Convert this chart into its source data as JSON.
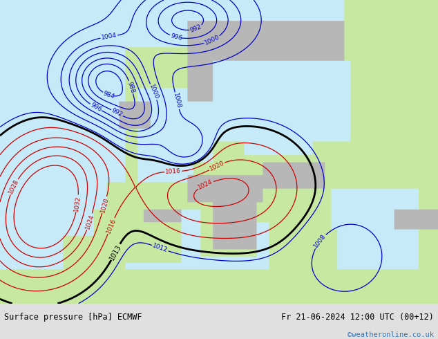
{
  "title_left": "Surface pressure [hPa] ECMWF",
  "title_right": "Fr 21-06-2024 12:00 UTC (00+12)",
  "copyright": "©weatheronline.co.uk",
  "land_color": [
    0.78,
    0.91,
    0.63
  ],
  "sea_color": [
    0.78,
    0.92,
    0.97
  ],
  "mountain_color": [
    0.72,
    0.72,
    0.72
  ],
  "bottom_color": "#e0e0e0",
  "figsize": [
    6.34,
    4.9
  ],
  "dpi": 100,
  "lon_min": -25,
  "lon_max": 45,
  "lat_min": 30,
  "lat_max": 75
}
